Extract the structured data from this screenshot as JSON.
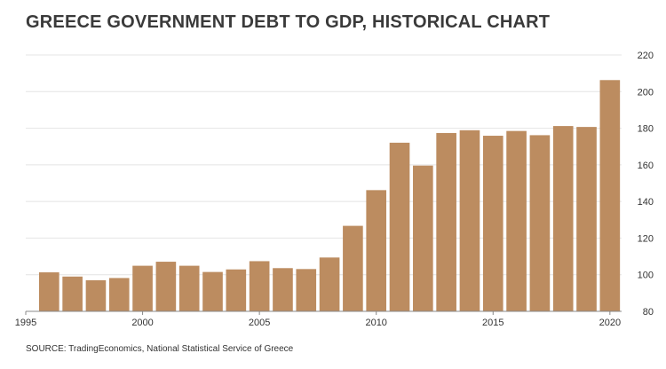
{
  "title": "GREECE GOVERNMENT DEBT TO GDP, HISTORICAL CHART",
  "source": "SOURCE: TradingEconomics, National Statistical Service of Greece",
  "colors": {
    "bar": "#bc8c60",
    "grid": "#e4e4e4",
    "axis": "#888888",
    "text": "#333333"
  },
  "chart_data": {
    "type": "bar",
    "title": "GREECE GOVERNMENT DEBT TO GDP, HISTORICAL CHART",
    "xlabel": "",
    "ylabel": "",
    "categories": [
      1996,
      1997,
      1998,
      1999,
      2000,
      2001,
      2002,
      2003,
      2004,
      2005,
      2006,
      2007,
      2008,
      2009,
      2010,
      2011,
      2012,
      2013,
      2014,
      2015,
      2016,
      2017,
      2018,
      2019,
      2020
    ],
    "values": [
      101.3,
      99.0,
      97.0,
      98.2,
      104.9,
      107.1,
      104.9,
      101.5,
      102.9,
      107.4,
      103.6,
      103.1,
      109.4,
      126.7,
      146.2,
      172.1,
      159.6,
      177.4,
      178.9,
      175.9,
      178.5,
      176.2,
      181.2,
      180.7,
      206.3
    ],
    "ylim": [
      80,
      220
    ],
    "yticks": [
      80,
      100,
      120,
      140,
      160,
      180,
      200,
      220
    ],
    "ytick_labels": [
      "80",
      "100",
      "120",
      "140",
      "160",
      "180",
      "200",
      "220"
    ],
    "xlim": [
      1995,
      2020.5
    ],
    "xticks": [
      1995,
      2000,
      2005,
      2010,
      2015,
      2020
    ],
    "xtick_labels": [
      "1995",
      "2000",
      "2005",
      "2010",
      "2015",
      "2020"
    ],
    "y_axis_side": "right",
    "grid": true
  }
}
